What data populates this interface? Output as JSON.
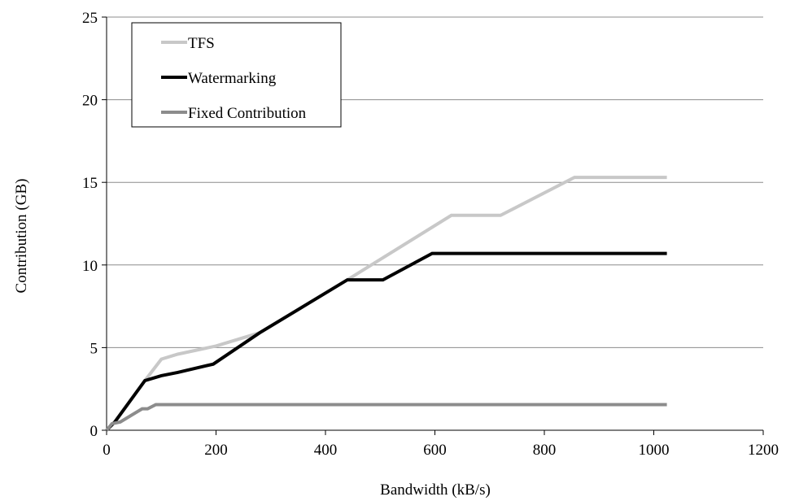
{
  "chart_data": {
    "type": "line",
    "title": "",
    "xlabel": "Bandwidth (kB/s)",
    "ylabel": "Contribution (GB)",
    "xlim": [
      0,
      1200
    ],
    "ylim": [
      0,
      25
    ],
    "x_ticks": [
      "0",
      "200",
      "400",
      "600",
      "800",
      "1000",
      "1200"
    ],
    "y_ticks": [
      "0",
      "5",
      "10",
      "15",
      "20",
      "25"
    ],
    "grid": "horizontal",
    "legend_position": "top-left",
    "series": [
      {
        "name": "TFS",
        "color": "#c8c8c8",
        "points": [
          [
            0,
            0
          ],
          [
            15,
            0.5
          ],
          [
            70,
            3
          ],
          [
            100,
            4.3
          ],
          [
            130,
            4.6
          ],
          [
            200,
            5.1
          ],
          [
            280,
            5.9
          ],
          [
            440,
            9.1
          ],
          [
            630,
            13
          ],
          [
            720,
            13
          ],
          [
            855,
            15.3
          ],
          [
            1024,
            15.3
          ]
        ]
      },
      {
        "name": "Watermarking",
        "color": "#000000",
        "points": [
          [
            0,
            0
          ],
          [
            15,
            0.5
          ],
          [
            70,
            3
          ],
          [
            100,
            3.3
          ],
          [
            130,
            3.5
          ],
          [
            195,
            4
          ],
          [
            280,
            5.9
          ],
          [
            440,
            9.1
          ],
          [
            505,
            9.1
          ],
          [
            595,
            10.7
          ],
          [
            1024,
            10.7
          ]
        ]
      },
      {
        "name": "Fixed Contribution",
        "color": "#8c8c8c",
        "points": [
          [
            0,
            0
          ],
          [
            10,
            0.4
          ],
          [
            25,
            0.5
          ],
          [
            65,
            1.3
          ],
          [
            75,
            1.3
          ],
          [
            90,
            1.55
          ],
          [
            1024,
            1.55
          ]
        ]
      }
    ]
  }
}
